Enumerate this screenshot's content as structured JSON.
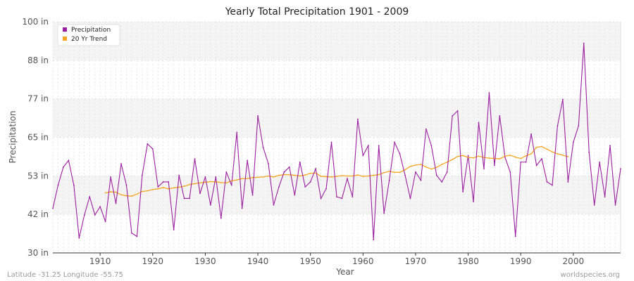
{
  "chart_data": {
    "type": "line",
    "title": "Yearly Total Precipitation 1901 - 2009",
    "xlabel": "Year",
    "ylabel": "Precipitation",
    "xlim": [
      1901,
      2009
    ],
    "ylim": [
      30,
      100
    ],
    "y_ticks": [
      {
        "value": 30,
        "label": "30 in"
      },
      {
        "value": 41.67,
        "label": "42 in"
      },
      {
        "value": 53.33,
        "label": "53 in"
      },
      {
        "value": 65,
        "label": "65 in"
      },
      {
        "value": 76.67,
        "label": "77 in"
      },
      {
        "value": 88.33,
        "label": "88 in"
      },
      {
        "value": 100,
        "label": "100 in"
      }
    ],
    "x_ticks": [
      1910,
      1920,
      1930,
      1940,
      1950,
      1960,
      1970,
      1980,
      1990,
      2000
    ],
    "legend": {
      "position": "top-left",
      "entries": [
        "Precipitation",
        "20 Yr Trend"
      ]
    },
    "colors": {
      "precipitation": "#9b1fa0",
      "trend": "#f5a623"
    },
    "series": [
      {
        "name": "Precipitation",
        "x": [
          1901,
          1902,
          1903,
          1904,
          1905,
          1906,
          1907,
          1908,
          1909,
          1910,
          1911,
          1912,
          1913,
          1914,
          1915,
          1916,
          1917,
          1918,
          1919,
          1920,
          1921,
          1922,
          1923,
          1924,
          1925,
          1926,
          1927,
          1928,
          1929,
          1930,
          1931,
          1932,
          1933,
          1934,
          1935,
          1936,
          1937,
          1938,
          1939,
          1940,
          1941,
          1942,
          1943,
          1944,
          1945,
          1946,
          1947,
          1948,
          1949,
          1950,
          1951,
          1952,
          1953,
          1954,
          1955,
          1956,
          1957,
          1958,
          1959,
          1960,
          1961,
          1962,
          1963,
          1964,
          1965,
          1966,
          1967,
          1968,
          1969,
          1970,
          1971,
          1972,
          1973,
          1974,
          1975,
          1976,
          1977,
          1978,
          1979,
          1980,
          1981,
          1982,
          1983,
          1984,
          1985,
          1986,
          1987,
          1988,
          1989,
          1990,
          1991,
          1992,
          1993,
          1994,
          1995,
          1996,
          1997,
          1998,
          1999,
          2000,
          2001,
          2002,
          2003,
          2004,
          2005,
          2006,
          2007,
          2008,
          2009
        ],
        "values": [
          43.5,
          50.5,
          56,
          58,
          50.5,
          34.5,
          41.5,
          47,
          41.5,
          44,
          39.5,
          53,
          45,
          57,
          50.5,
          36,
          35,
          53.5,
          63,
          61.5,
          50,
          51.5,
          51.5,
          37,
          53.5,
          46.5,
          46.5,
          58.5,
          48,
          53,
          44.5,
          53,
          40.5,
          54.5,
          50.5,
          66.5,
          43.5,
          58,
          47.5,
          71.5,
          62,
          57,
          44.5,
          50,
          54.5,
          56,
          47.5,
          57.5,
          50,
          51.5,
          55.5,
          46.5,
          49.5,
          63.5,
          47,
          46.5,
          52.5,
          47,
          70.5,
          59.5,
          62.5,
          34,
          62.5,
          42,
          52,
          63.5,
          60,
          53.5,
          46.5,
          54.5,
          52,
          67.5,
          62.5,
          53.5,
          51.5,
          54.5,
          71.5,
          73,
          48.5,
          59.5,
          45.5,
          69.5,
          55.5,
          78.5,
          56.5,
          71.5,
          59,
          54.5,
          35,
          57.5,
          57.5,
          66,
          56.5,
          58.5,
          51.5,
          50.5,
          68.5,
          76.5,
          51.5,
          63.5,
          68.5,
          93.5,
          60.5,
          44.5,
          57.5,
          47,
          62.5,
          44.5,
          55.5
        ]
      },
      {
        "name": "20 Yr Trend",
        "x": [
          1911,
          1912,
          1913,
          1914,
          1915,
          1916,
          1917,
          1918,
          1919,
          1920,
          1921,
          1922,
          1923,
          1924,
          1925,
          1926,
          1927,
          1928,
          1929,
          1930,
          1931,
          1932,
          1933,
          1934,
          1935,
          1936,
          1937,
          1938,
          1939,
          1940,
          1941,
          1942,
          1943,
          1944,
          1945,
          1946,
          1947,
          1948,
          1949,
          1950,
          1951,
          1952,
          1953,
          1954,
          1955,
          1956,
          1957,
          1958,
          1959,
          1960,
          1961,
          1962,
          1963,
          1964,
          1965,
          1966,
          1967,
          1968,
          1969,
          1970,
          1971,
          1972,
          1973,
          1974,
          1975,
          1976,
          1977,
          1978,
          1979,
          1980,
          1981,
          1982,
          1983,
          1984,
          1985,
          1986,
          1987,
          1988,
          1989,
          1990,
          1991,
          1992,
          1993,
          1994,
          1995,
          1996,
          1997,
          1998,
          1999
        ],
        "values": [
          48.2,
          48.5,
          48.4,
          47.6,
          47.3,
          47.2,
          47.8,
          48.6,
          48.8,
          49.2,
          49.4,
          49.8,
          49.4,
          49.7,
          49.9,
          50.2,
          50.7,
          51,
          51.2,
          51.4,
          51.6,
          51.5,
          51.3,
          51.2,
          51.8,
          52.1,
          52.5,
          52.5,
          52.8,
          52.9,
          53,
          53.3,
          53,
          53.5,
          53.7,
          53.7,
          53.5,
          53.3,
          53.6,
          54.1,
          54.2,
          53.2,
          53.1,
          53,
          53.2,
          53.4,
          53.3,
          53.3,
          53.6,
          53.2,
          53.3,
          53.5,
          53.7,
          54.3,
          54.7,
          54.4,
          54.4,
          55.2,
          56.2,
          56.6,
          56.8,
          56,
          55.4,
          55.9,
          56.8,
          57.5,
          58.3,
          59.2,
          59.5,
          58.9,
          58.8,
          59.3,
          58.9,
          58.7,
          58.6,
          58.5,
          59.3,
          59.6,
          59,
          58.6,
          59.4,
          60,
          62,
          62.2,
          61.4,
          60.6,
          60,
          59.6,
          59.1
        ]
      }
    ]
  },
  "footer": {
    "left": "Latitude -31.25 Longitude -55.75",
    "right": "worldspecies.org"
  }
}
